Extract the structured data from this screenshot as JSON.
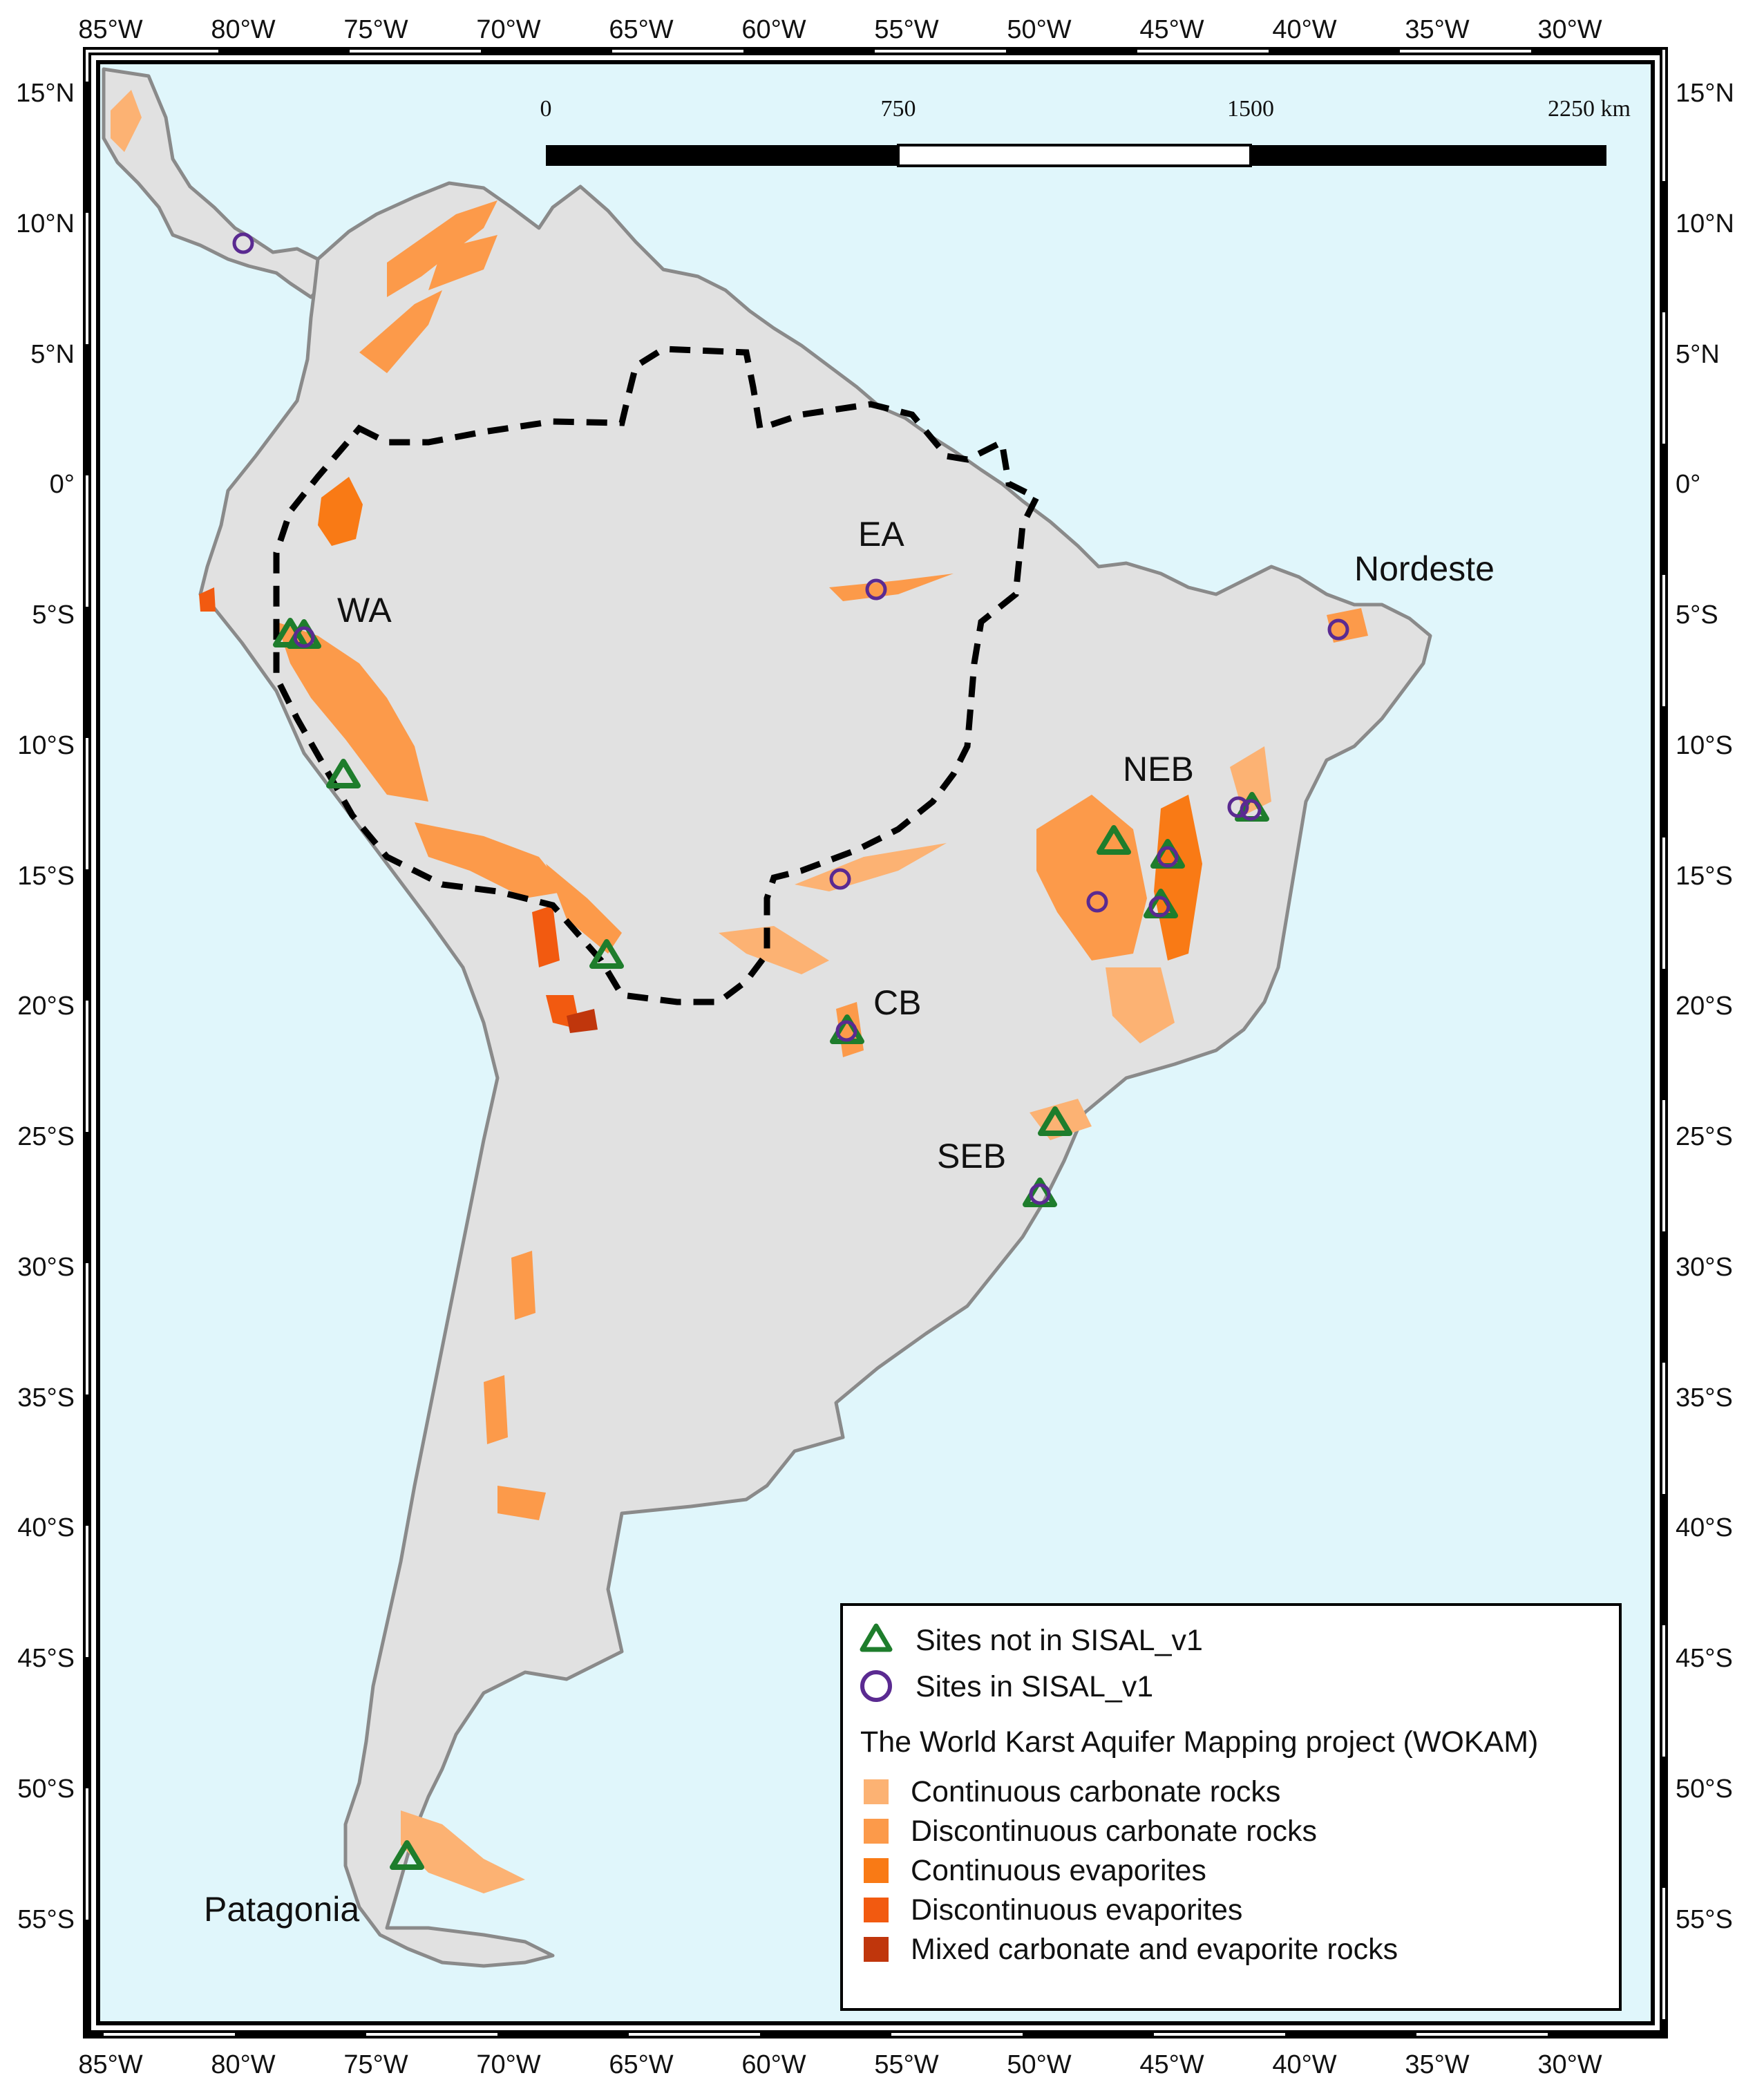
{
  "map": {
    "lon_ticks": [
      "85°W",
      "80°W",
      "75°W",
      "70°W",
      "65°W",
      "60°W",
      "55°W",
      "50°W",
      "45°W",
      "40°W",
      "35°W",
      "30°W"
    ],
    "lat_ticks": [
      "15°N",
      "10°N",
      "5°N",
      "0°",
      "5°S",
      "10°S",
      "15°S",
      "20°S",
      "25°S",
      "30°S",
      "35°S",
      "40°S",
      "45°S",
      "50°S",
      "55°S"
    ],
    "scale_bar": {
      "labels": [
        "0",
        "750",
        "1500",
        "2250 km"
      ]
    },
    "region_labels": {
      "wa": "WA",
      "ea": "EA",
      "nordeste": "Nordeste",
      "neb": "NEB",
      "cb": "CB",
      "seb": "SEB",
      "patagonia": "Patagonia"
    },
    "colors": {
      "ocean": "#e0f6fb",
      "land": "#e1e1e1",
      "coast": "#8a8a8a",
      "triangle": "#1e7d2c",
      "circle": "#5a2a91",
      "continuous_carbonate": "#fcb273",
      "discontinuous_carbonate": "#fc9a4a",
      "continuous_evaporites": "#f97a15",
      "discontinuous_evaporites": "#f25a10",
      "mixed": "#c0360c"
    }
  },
  "legend": {
    "not_in_sisal": "Sites not in SISAL_v1",
    "in_sisal": "Sites in SISAL_v1",
    "wokam_title": "The World Karst Aquifer Mapping project (WOKAM)",
    "items": [
      "Continuous carbonate rocks",
      "Discontinuous carbonate rocks",
      "Continuous evaporites",
      "Discontinuous evaporites",
      "Mixed carbonate and evaporite rocks"
    ]
  }
}
